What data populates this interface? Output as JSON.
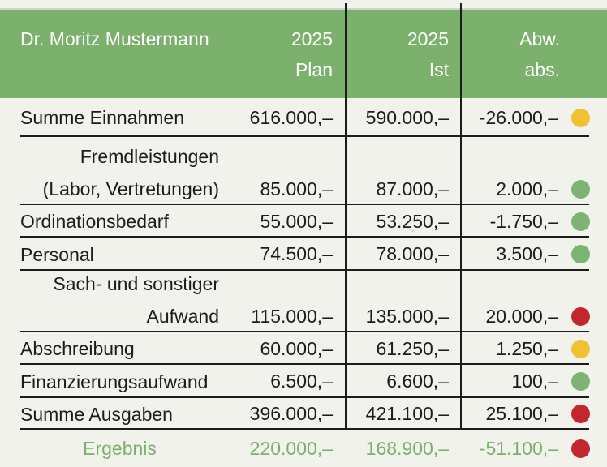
{
  "colors": {
    "header_green": "#7bb06d",
    "background": "#f1f2ec",
    "line_black": "#1c1c1c",
    "status_green": "#7cb474",
    "status_yellow": "#f0c233",
    "status_red": "#c1272d",
    "result_text_green": "#7bb06d"
  },
  "header": {
    "title": "Dr. Moritz Mustermann",
    "col_plan": {
      "line1": "2025",
      "line2": "Plan"
    },
    "col_ist": {
      "line1": "2025",
      "line2": "Ist"
    },
    "col_abw": {
      "line1": "Abw.",
      "line2": "abs."
    }
  },
  "table": {
    "rows": [
      {
        "label": "Summe Einnahmen",
        "label2": "",
        "plan": "616.000,–",
        "ist": "590.000,–",
        "abw": "-26.000,–",
        "status": "yellow"
      },
      {
        "label": "Fremdleistungen",
        "label2": "(Labor, Vertretungen)",
        "plan": "85.000,–",
        "ist": "87.000,–",
        "abw": "2.000,–",
        "status": "green"
      },
      {
        "label": "Ordinationsbedarf",
        "label2": "",
        "plan": "55.000,–",
        "ist": "53.250,–",
        "abw": "-1.750,–",
        "status": "green"
      },
      {
        "label": "Personal",
        "label2": "",
        "plan": "74.500,–",
        "ist": "78.000,–",
        "abw": "3.500,–",
        "status": "green"
      },
      {
        "label": "Sach- und sonstiger",
        "label2": "Aufwand",
        "plan": "115.000,–",
        "ist": "135.000,–",
        "abw": "20.000,–",
        "status": "red"
      },
      {
        "label": "Abschreibung",
        "label2": "",
        "plan": "60.000,–",
        "ist": "61.250,–",
        "abw": "1.250,–",
        "status": "yellow"
      },
      {
        "label": "Finanzierungsaufwand",
        "label2": "",
        "plan": "6.500,–",
        "ist": "6.600,–",
        "abw": "100,–",
        "status": "green"
      },
      {
        "label": "Summe Ausgaben",
        "label2": "",
        "plan": "396.000,–",
        "ist": "421.100,–",
        "abw": "25.100,–",
        "status": "red"
      }
    ],
    "result_row": {
      "label": "Ergebnis",
      "plan": "220.000,–",
      "ist": "168.900,–",
      "abw": "-51.100,–",
      "status": "red"
    }
  },
  "chart_data": {
    "type": "table",
    "title": "Dr. Moritz Mustermann",
    "columns": [
      "2025 Plan",
      "2025 Ist",
      "Abw. abs.",
      "Status"
    ],
    "rows": [
      {
        "label": "Summe Einnahmen",
        "plan": 616000,
        "ist": 590000,
        "abw": -26000,
        "status": "yellow"
      },
      {
        "label": "Fremdleistungen (Labor, Vertretungen)",
        "plan": 85000,
        "ist": 87000,
        "abw": 2000,
        "status": "green"
      },
      {
        "label": "Ordinationsbedarf",
        "plan": 55000,
        "ist": 53250,
        "abw": -1750,
        "status": "green"
      },
      {
        "label": "Personal",
        "plan": 74500,
        "ist": 78000,
        "abw": 3500,
        "status": "green"
      },
      {
        "label": "Sach- und sonstiger Aufwand",
        "plan": 115000,
        "ist": 135000,
        "abw": 20000,
        "status": "red"
      },
      {
        "label": "Abschreibung",
        "plan": 60000,
        "ist": 61250,
        "abw": 1250,
        "status": "yellow"
      },
      {
        "label": "Finanzierungsaufwand",
        "plan": 6500,
        "ist": 6600,
        "abw": 100,
        "status": "green"
      },
      {
        "label": "Summe Ausgaben",
        "plan": 396000,
        "ist": 421100,
        "abw": 25100,
        "status": "red"
      },
      {
        "label": "Ergebnis",
        "plan": 220000,
        "ist": 168900,
        "abw": -51100,
        "status": "red"
      }
    ]
  }
}
